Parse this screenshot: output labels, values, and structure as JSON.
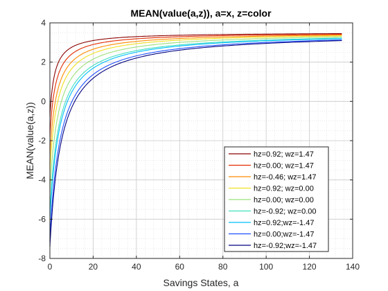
{
  "chart_data": {
    "type": "line",
    "title": "MEAN(value(a,z)), a=x, z=color",
    "xlabel": "Savings States, a",
    "ylabel": "MEAN(value(a,z))",
    "xlim": [
      0,
      140
    ],
    "ylim": [
      -8,
      4
    ],
    "xticks": [
      0,
      20,
      40,
      60,
      80,
      100,
      120,
      140
    ],
    "yticks": [
      -8,
      -6,
      -4,
      -2,
      0,
      2,
      4
    ],
    "grid": true,
    "minor_grid": true,
    "legend_position": "bottom-right",
    "x_max": 135,
    "series": [
      {
        "name": "hz=0.92; wz=1.47",
        "color": "#8b0000",
        "start": -0.8
      },
      {
        "name": "hz=0.00; wz=1.47",
        "color": "#e32b00",
        "start": -1.8
      },
      {
        "name": "hz=-0.46; wz=1.47",
        "color": "#ff8c00",
        "start": -2.8
      },
      {
        "name": "hz=0.92; wz=0.00",
        "color": "#f0e020",
        "start": -3.6
      },
      {
        "name": "hz=0.00; wz=0.00",
        "color": "#9be07a",
        "start": -4.6
      },
      {
        "name": "hz=-0.92; wz=0.00",
        "color": "#40e0c0",
        "start": -5.6
      },
      {
        "name": "hz=0.92;wz=-1.47",
        "color": "#00bfff",
        "start": -6.0
      },
      {
        "name": "hz=0.00;wz=-1.47",
        "color": "#1e50ff",
        "start": -6.9
      },
      {
        "name": "hz=-0.92;wz=-1.47",
        "color": "#000080",
        "start": -7.4
      }
    ]
  }
}
